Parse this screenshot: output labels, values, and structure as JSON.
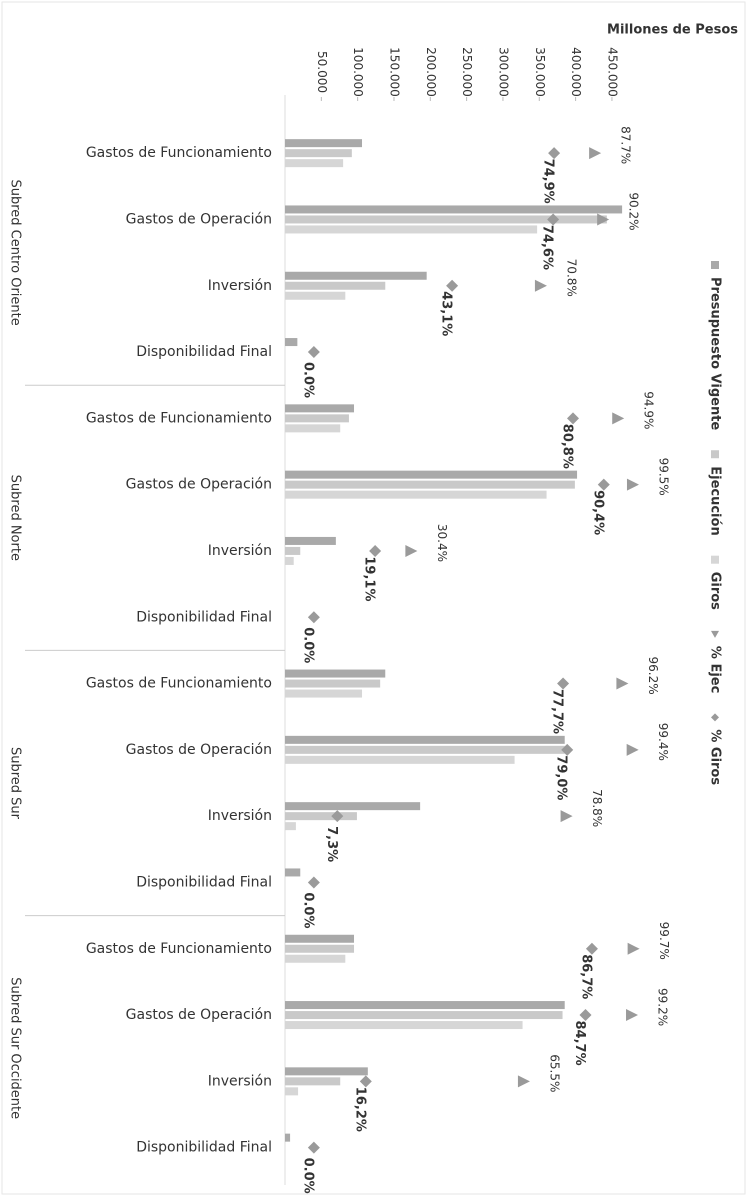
{
  "chart_data": {
    "type": "bar",
    "orientation": "horizontal",
    "y_label": "Millones de Pesos",
    "groups": [
      "Subred Centro Oriente",
      "Subred Norte",
      "Subred Sur",
      "Subred Sur Occidente"
    ],
    "categories": [
      "Gastos de Funcionamiento",
      "Gastos de Operación",
      "Inversión",
      "Disponibilidad Final",
      "Gastos de Funcionamiento",
      "Gastos de Operación",
      "Inversión",
      "Disponibilidad Final",
      "Gastos de Funcionamiento",
      "Gastos de Operación",
      "Inversión",
      "Disponibilidad Final",
      "Gastos de Funcionamiento",
      "Gastos de Operación",
      "Inversión",
      "Disponibilidad Final"
    ],
    "ylim": [
      0,
      490000
    ],
    "yticks": [
      {
        "value": 50000,
        "label": "50.000"
      },
      {
        "value": 100000,
        "label": "100.000"
      },
      {
        "value": 150000,
        "label": "150.000"
      },
      {
        "value": 200000,
        "label": "200.000"
      },
      {
        "value": 250000,
        "label": "250.000"
      },
      {
        "value": 300000,
        "label": "300.000"
      },
      {
        "value": 350000,
        "label": "350.000"
      },
      {
        "value": 400000,
        "label": "400.000"
      },
      {
        "value": 450000,
        "label": "450.000"
      }
    ],
    "y2lim": [
      -9,
      102
    ],
    "series": [
      {
        "name": "Presupuesto Vigente",
        "color": "#a9a9a9",
        "values": [
          106000,
          464000,
          195000,
          17000,
          95000,
          402000,
          70000,
          0,
          138000,
          385000,
          186000,
          21000,
          95000,
          385000,
          114000,
          7000
        ]
      },
      {
        "name": "Ejecución",
        "color": "#c9c9c9",
        "values": [
          92000,
          443000,
          138000,
          0,
          88000,
          399000,
          21000,
          0,
          131000,
          385000,
          99000,
          0,
          95000,
          382000,
          76000,
          0
        ]
      },
      {
        "name": "Giros",
        "color": "#d6d6d6",
        "values": [
          80000,
          347000,
          83000,
          0,
          76000,
          360000,
          12000,
          0,
          106000,
          316000,
          15000,
          0,
          83000,
          327000,
          18000,
          0
        ]
      },
      {
        "name": "% Ejec",
        "color": "#9a9a9a",
        "axis": "y2",
        "marker": "triangle",
        "values": [
          87.7,
          90.2,
          70.8,
          null,
          94.9,
          99.5,
          30.4,
          null,
          96.2,
          99.4,
          78.8,
          null,
          99.7,
          99.2,
          65.5,
          null
        ],
        "value_labels": [
          "87.7%",
          "90.2%",
          "70.8%",
          null,
          "94.9%",
          "99.5%",
          "30.4%",
          null,
          "96.2%",
          "99.4%",
          "78.8%",
          null,
          "99.7%",
          "99.2%",
          "65.5%",
          null
        ]
      },
      {
        "name": "% Giros",
        "color": "#9a9a9a",
        "axis": "y2",
        "marker": "diamond",
        "values": [
          74.9,
          74.6,
          43.1,
          0.0,
          80.8,
          90.4,
          19.1,
          0.0,
          77.7,
          79.0,
          7.3,
          0.0,
          86.7,
          84.7,
          16.2,
          0.0
        ],
        "value_labels": [
          "74,9%",
          "74,6%",
          "43,1%",
          "0.0%",
          "80,8%",
          "90,4%",
          "19,1%",
          "0.0%",
          "77,7%",
          "79,0%",
          "7,3%",
          "0.0%",
          "86,7%",
          "84,7%",
          "16,2%",
          "0.0%"
        ]
      }
    ]
  }
}
